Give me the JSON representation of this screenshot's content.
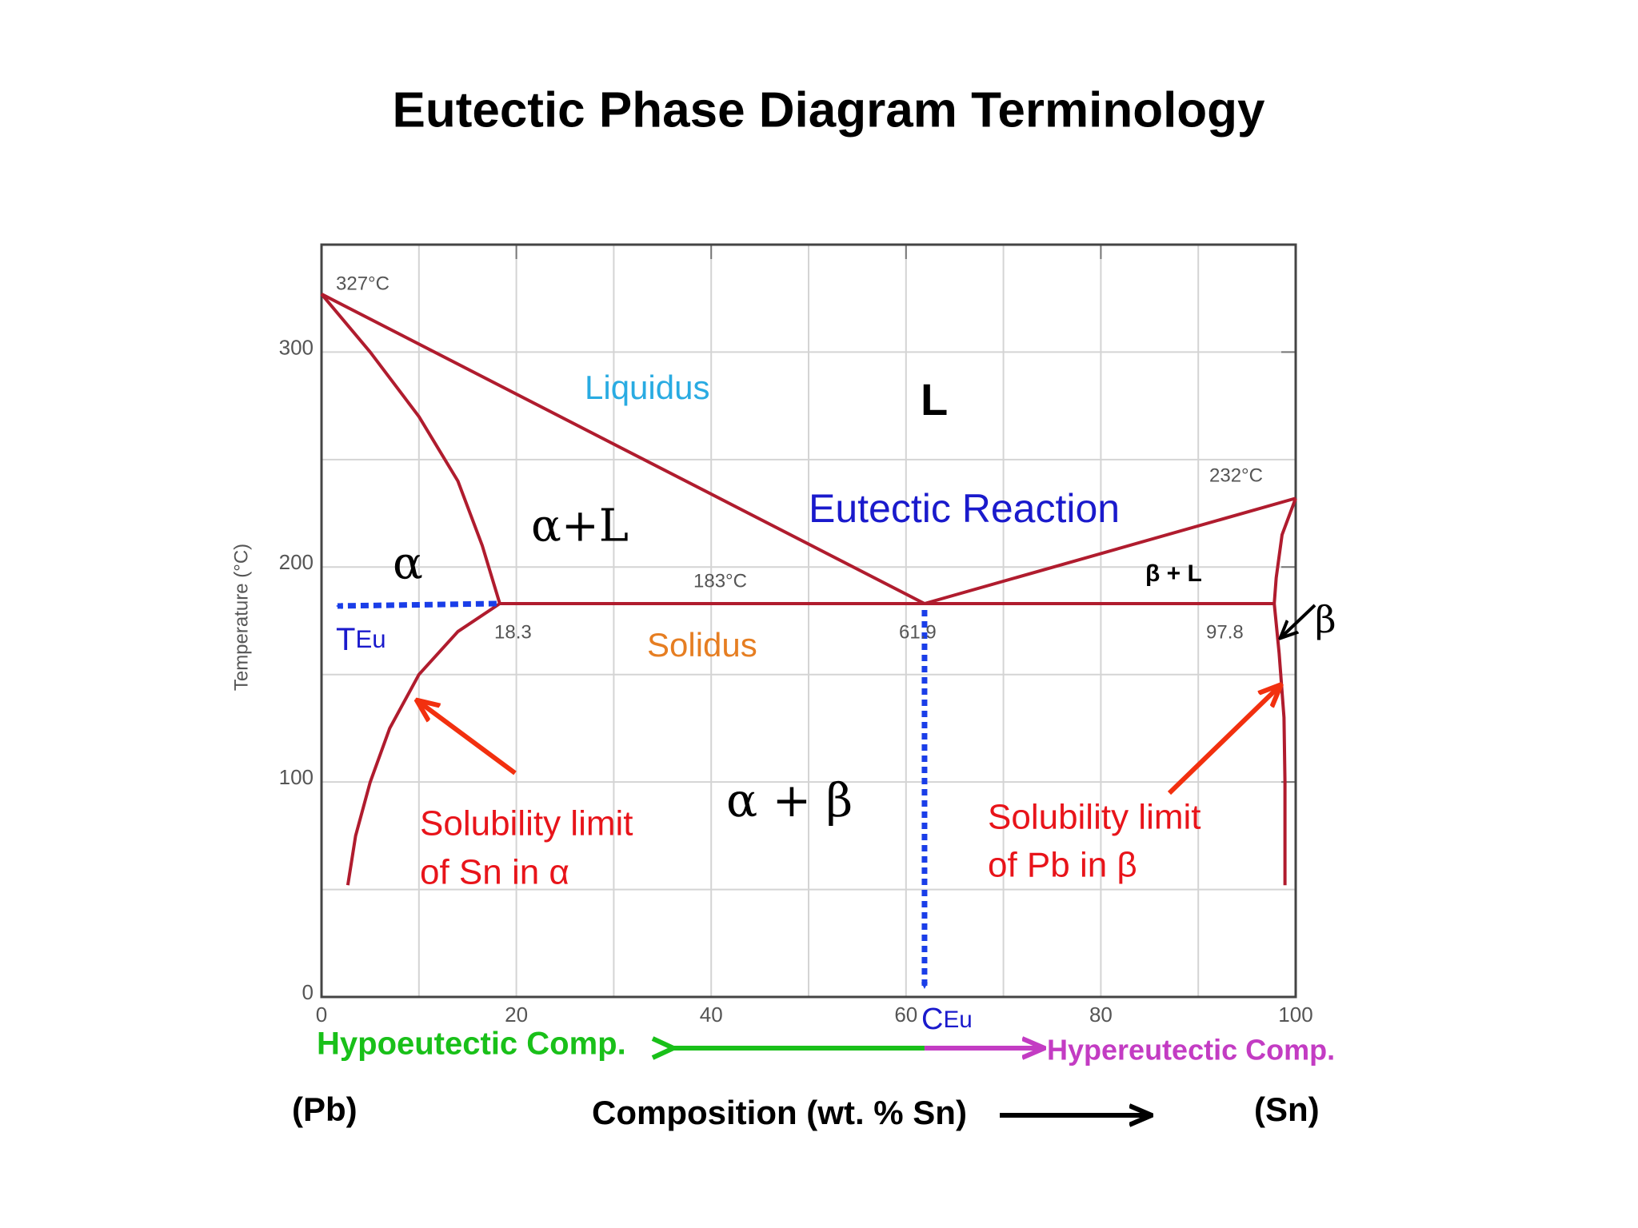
{
  "chart_data": {
    "type": "phase",
    "title": "Eutectic Phase Diagram Terminology",
    "xlabel": "Composition (wt. % Sn)",
    "ylabel": "Temperature (°C)",
    "xlim": [
      0,
      100
    ],
    "ylim": [
      0,
      350
    ],
    "xticks": [
      0,
      20,
      40,
      60,
      80,
      100
    ],
    "yticks": [
      0,
      100,
      200,
      300
    ],
    "xminorticks": [
      10,
      30,
      50,
      70,
      90
    ],
    "yminorticks": [
      50,
      150,
      250
    ],
    "grid": true,
    "color": "#b01c2e",
    "series": [
      {
        "x": [
          0,
          61.9
        ],
        "values": [
          327,
          183
        ]
      },
      {
        "x": [
          61.9,
          100
        ],
        "values": [
          183,
          232
        ]
      },
      {
        "x": [
          0,
          5,
          10,
          14,
          16.5,
          18.3
        ],
        "values": [
          327,
          300,
          270,
          240,
          210,
          183
        ]
      },
      {
        "x": [
          18.3,
          14,
          10,
          7,
          5,
          3.5,
          2.7
        ],
        "values": [
          183,
          170,
          150,
          125,
          100,
          75,
          52
        ]
      },
      {
        "x": [
          18.3,
          97.8
        ],
        "values": [
          183,
          183
        ]
      },
      {
        "x": [
          100,
          98.6,
          98,
          97.8
        ],
        "values": [
          232,
          215,
          195,
          183
        ]
      },
      {
        "x": [
          97.8,
          98.3,
          98.8,
          98.9,
          98.9
        ],
        "values": [
          183,
          160,
          130,
          100,
          52
        ]
      }
    ],
    "annotations": {
      "t327": "327°C",
      "t232": "232°C",
      "t183": "183°C",
      "c18": "18.3",
      "c62": "61.9",
      "c98": "97.8",
      "liquidus": "Liquidus",
      "L": "L",
      "eutectic": "Eutectic Reaction",
      "aL": "α+L",
      "a": "α",
      "bL": "β + L",
      "b": "β",
      "teu": {
        "main": "T",
        "sub": "Eu"
      },
      "solidus": "Solidus",
      "ab": "α + β",
      "sol1a": "Solubility limit",
      "sol1b": "of Sn in α",
      "sol2a": "Solubility limit",
      "sol2b": "of Pb in β",
      "ceu": {
        "main": "C",
        "sub": "Eu"
      },
      "hypo": "Hypoeutectic Comp.",
      "hyper": "Hypereutectic Comp.",
      "pb": "(Pb)",
      "sn": "(Sn)"
    }
  }
}
